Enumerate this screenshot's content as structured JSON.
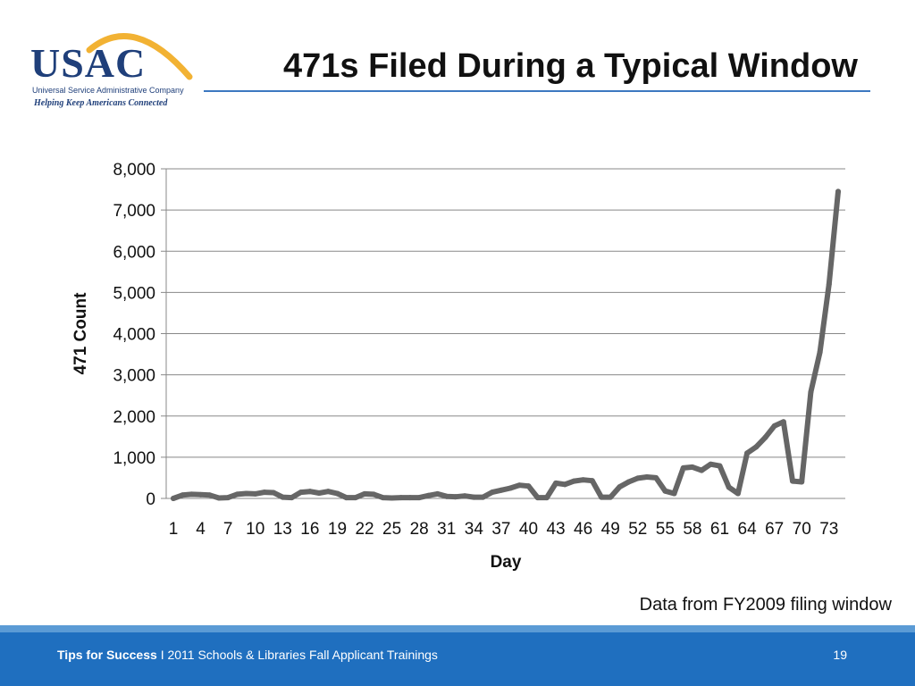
{
  "logo": {
    "name": "USAC",
    "subtitle": "Universal Service Administrative Company",
    "tagline": "Helping Keep Americans Connected",
    "arc_color": "#f2b233",
    "text_color": "#1f3f7a"
  },
  "title": "471s Filed During a Typical Window",
  "note": "Data from FY2009 filing window",
  "footer": {
    "label": "Tips for Success",
    "separator": "I",
    "event": "2011 Schools & Libraries Fall Applicant Trainings",
    "page": "19",
    "color": "#1f6fbf"
  },
  "chart_data": {
    "type": "line",
    "xlabel": "Day",
    "ylabel": "471 Count",
    "ylim": [
      0,
      8000
    ],
    "yticks": [
      0,
      1000,
      2000,
      3000,
      4000,
      5000,
      6000,
      7000,
      8000
    ],
    "ytick_labels": [
      "0",
      "1,000",
      "2,000",
      "3,000",
      "4,000",
      "5,000",
      "6,000",
      "7,000",
      "8,000"
    ],
    "xtick_labels": [
      "1",
      "4",
      "7",
      "10",
      "13",
      "16",
      "19",
      "22",
      "25",
      "28",
      "31",
      "34",
      "37",
      "40",
      "43",
      "46",
      "49",
      "52",
      "55",
      "58",
      "61",
      "64",
      "67",
      "70",
      "73"
    ],
    "grid": true,
    "line_color": "#666666",
    "series": [
      {
        "x": [
          1,
          2,
          3,
          4,
          5,
          6,
          7,
          8,
          9,
          10,
          11,
          12,
          13,
          14,
          15,
          16,
          17,
          18,
          19,
          20,
          21,
          22,
          23,
          24,
          25,
          26,
          27,
          28,
          29,
          30,
          31,
          32,
          33,
          34,
          35,
          36,
          37,
          38,
          39,
          40,
          41,
          42,
          43,
          44,
          45,
          46,
          47,
          48,
          49,
          50,
          51,
          52,
          53,
          54,
          55,
          56,
          57,
          58,
          59,
          60,
          61,
          62,
          63,
          64,
          65,
          66,
          67,
          68,
          69,
          70,
          71,
          72,
          73,
          74
        ],
        "values": [
          0,
          80,
          100,
          90,
          80,
          10,
          20,
          100,
          120,
          110,
          150,
          140,
          30,
          20,
          150,
          170,
          130,
          170,
          120,
          20,
          20,
          110,
          100,
          20,
          10,
          20,
          20,
          20,
          70,
          110,
          50,
          40,
          60,
          30,
          30,
          150,
          200,
          250,
          320,
          300,
          20,
          20,
          370,
          340,
          420,
          450,
          430,
          30,
          30,
          280,
          400,
          490,
          520,
          500,
          180,
          120,
          740,
          760,
          680,
          830,
          790,
          270,
          120,
          1100,
          1250,
          1480,
          1760,
          1860,
          420,
          400,
          2580,
          3550,
          5200,
          7450
        ]
      }
    ]
  }
}
